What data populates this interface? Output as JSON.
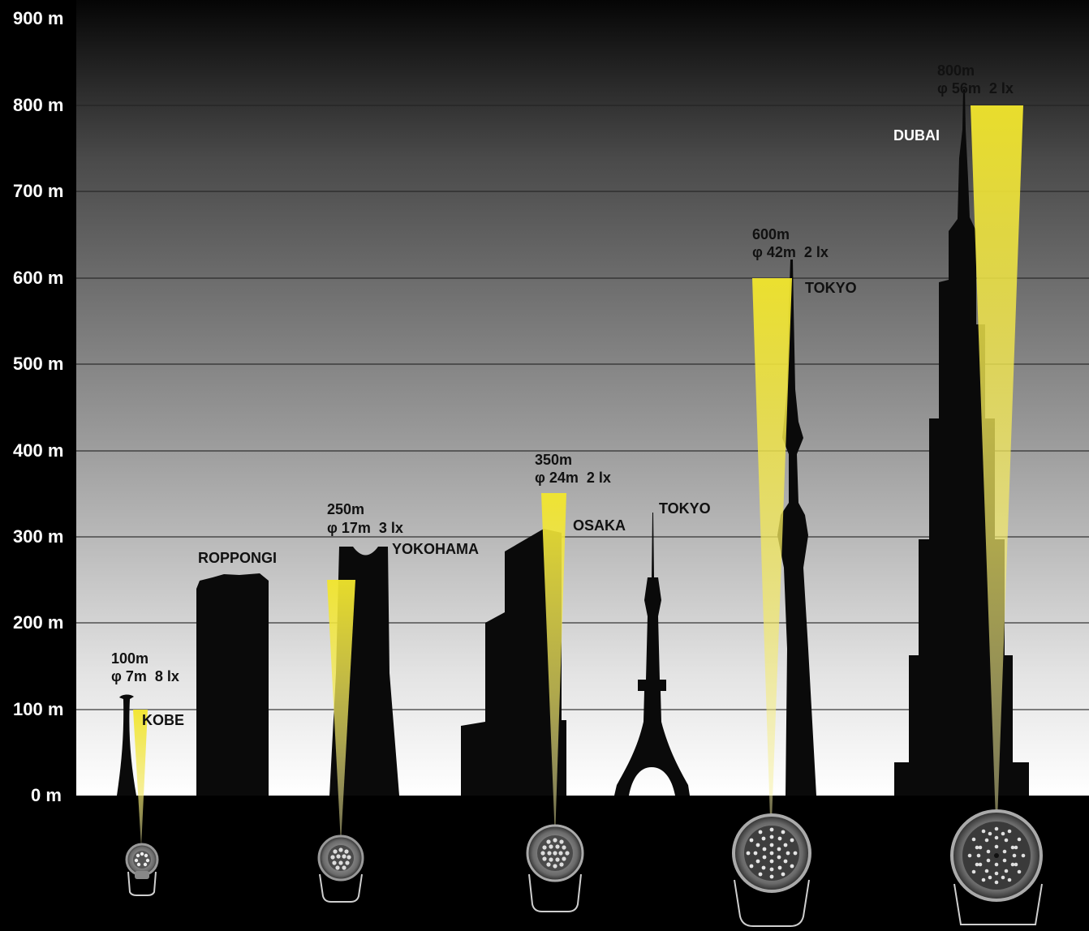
{
  "axis": {
    "unit": "m",
    "ticks": [
      "900 m",
      "800 m",
      "700 m",
      "600 m",
      "500 m",
      "400 m",
      "300 m",
      "200 m",
      "100 m",
      "0 m"
    ],
    "max": 900
  },
  "buildings": [
    {
      "id": "kobe",
      "city": "KOBE",
      "height": 117
    },
    {
      "id": "roppongi",
      "city": "ROPPONGI",
      "height": 257
    },
    {
      "id": "yokohama",
      "city": "YOKOHAMA",
      "height": 296
    },
    {
      "id": "osaka",
      "city": "OSAKA",
      "height": 300
    },
    {
      "id": "tokyo-tower",
      "city": "TOKYO",
      "height": 333
    },
    {
      "id": "skytree",
      "city": "TOKYO",
      "height": 634
    },
    {
      "id": "burj",
      "city": "DUBAI",
      "height": 828
    }
  ],
  "lights": [
    {
      "reach": "100m",
      "spec": "φ 7m  8 lx"
    },
    {
      "reach": "250m",
      "spec": "φ 17m  3 lx"
    },
    {
      "reach": "350m",
      "spec": "φ 24m  2 lx"
    },
    {
      "reach": "600m",
      "spec": "φ 42m  2 lx"
    },
    {
      "reach": "800m",
      "spec": "φ 56m  2 lx"
    }
  ],
  "colors": {
    "beam": "#f5e83a",
    "sky_top": "#000000",
    "sky_bottom": "#ffffff",
    "silhouette": "#0a0a0a",
    "axis_text": "#ffffff"
  }
}
